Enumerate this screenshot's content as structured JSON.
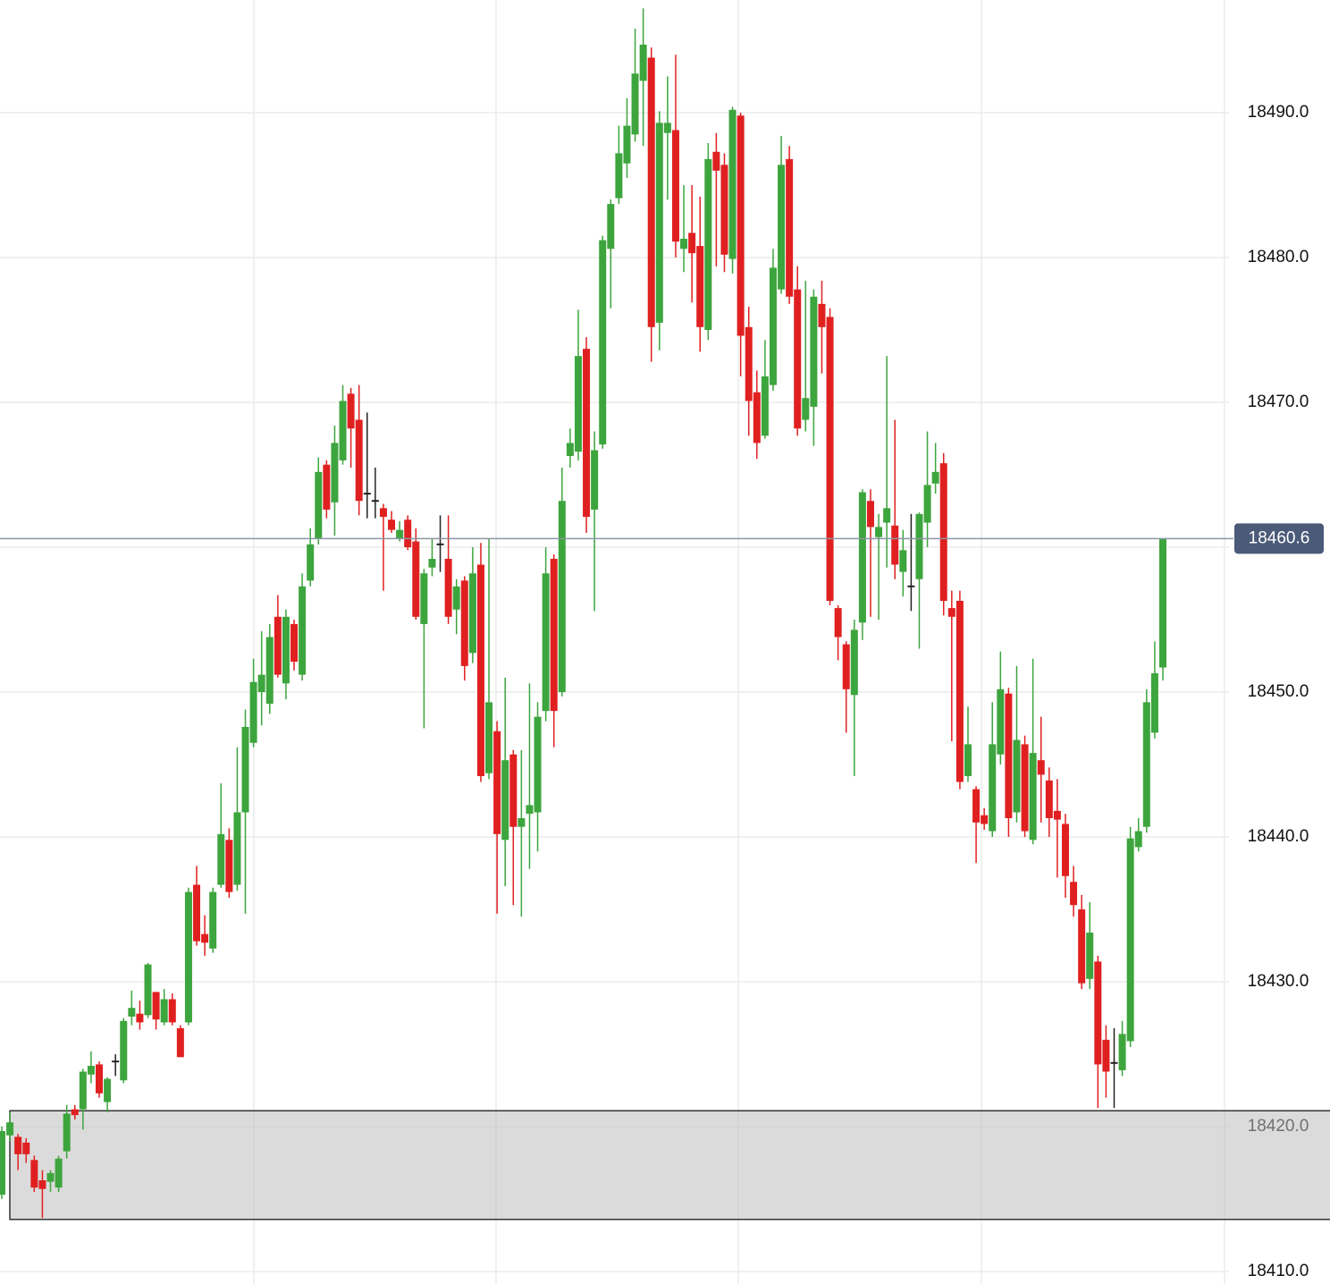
{
  "chart_data": {
    "type": "candlestick",
    "ylim": [
      18409.14,
      18497.78
    ],
    "yticks": [
      {
        "value": 18410,
        "label": "18410.0"
      },
      {
        "value": 18420,
        "label": "18420.0"
      },
      {
        "value": 18430,
        "label": "18430.0"
      },
      {
        "value": 18440,
        "label": "18440.0"
      },
      {
        "value": 18450,
        "label": "18450.0"
      },
      {
        "value": 18460,
        "label": "18460.0"
      },
      {
        "value": 18470,
        "label": "18470.0"
      },
      {
        "value": 18480,
        "label": "18480.0"
      },
      {
        "value": 18490,
        "label": "18490.0"
      }
    ],
    "hidden_tick_labels": [
      18460
    ],
    "grid": true,
    "up_color": "#3da53d",
    "down_color": "#e02020",
    "doji_color": "#222222",
    "last_price": {
      "value": 18460.6,
      "label": "18460.6"
    },
    "last_price_color": "#4a5a78",
    "shaded_range": [
      18413.6,
      18421.1
    ],
    "open": [
      18415.3,
      18419.4,
      18419.3,
      18418.9,
      18417.7,
      18416.3,
      18416.2,
      18415.8,
      18418.3,
      18421.2,
      18421.2,
      18423.6,
      18424.3,
      18421.7,
      18424.5,
      18423.2,
      18427.6,
      18427.8,
      18427.7,
      18429.3,
      18427.2,
      18428.8,
      18426.8,
      18427.2,
      18436.7,
      18433.3,
      18432.3,
      18436.7,
      18439.8,
      18436.7,
      18441.7,
      18446.5,
      18450,
      18449.2,
      18455.2,
      18450.6,
      18454.7,
      18451.2,
      18457.7,
      18460.6,
      18465.7,
      18463.1,
      18466,
      18470.6,
      18468.8,
      18463.7,
      18463.2,
      18462.7,
      18461.9,
      18460.6,
      18461.9,
      18460.4,
      18454.7,
      18458.6,
      18460.2,
      18459.2,
      18455.7,
      18457.7,
      18452.7,
      18458.8,
      18444.4,
      18447.3,
      18439.8,
      18445.7,
      18440.7,
      18441.6,
      18441.7,
      18448.7,
      18459.2,
      18450,
      18466.3,
      18466.6,
      18473.7,
      18462.6,
      18467.1,
      18480.6,
      18484.1,
      18486.5,
      18488.5,
      18492.2,
      18493.8,
      18475.5,
      18488.6,
      18488.8,
      18480.6,
      18481.7,
      18480.8,
      18475,
      18487.3,
      18486.4,
      18479.9,
      18489.8,
      18475.2,
      18470.7,
      18467.7,
      18471.2,
      18477.8,
      18486.8,
      18477.8,
      18468.8,
      18469.7,
      18476.8,
      18475.9,
      18455.8,
      18453.3,
      18449.8,
      18454.8,
      18463.2,
      18460.7,
      18461.7,
      18461.5,
      18458.3,
      18457.3,
      18457.8,
      18461.7,
      18464.4,
      18465.8,
      18455.8,
      18456.3,
      18444.2,
      18443.3,
      18441.5,
      18440.4,
      18445.7,
      18449.9,
      18441.7,
      18446.4,
      18439.8,
      18445.3,
      18443.9,
      18441.8,
      18440.9,
      18436.9,
      18435,
      18430.2,
      18431.4,
      18426,
      18424.4,
      18423.9,
      18425.9,
      18439.3,
      18440.7,
      18447.2,
      18451.7
    ],
    "high": [
      18420,
      18421,
      18419.5,
      18419.2,
      18418,
      18417,
      18417,
      18418,
      18421.5,
      18421.5,
      18424,
      18425.2,
      18424.5,
      18423.4,
      18425,
      18427.5,
      18429.4,
      18428.7,
      18431.3,
      18429.3,
      18429.5,
      18429.2,
      18427,
      18436.5,
      18438,
      18434.6,
      18436.5,
      18443.7,
      18440.6,
      18446.2,
      18448.8,
      18452.3,
      18454.2,
      18454.7,
      18456.7,
      18455.7,
      18455,
      18458.2,
      18461.3,
      18466.2,
      18466,
      18468.4,
      18471.2,
      18471,
      18471.2,
      18469.3,
      18465.5,
      18463,
      18462.5,
      18461.8,
      18462.2,
      18461.3,
      18458.5,
      18460.6,
      18462.2,
      18462.2,
      18457.8,
      18458,
      18460,
      18460.3,
      18460.6,
      18448,
      18451,
      18446,
      18446,
      18450.6,
      18449.3,
      18460,
      18459.5,
      18465.5,
      18468.2,
      18476.4,
      18474.5,
      18468,
      18481.5,
      18484,
      18489.1,
      18491,
      18495.8,
      18497.2,
      18494.5,
      18490.1,
      18492.5,
      18494,
      18485,
      18485,
      18484.2,
      18487.9,
      18488.6,
      18487.2,
      18490.4,
      18490,
      18476.6,
      18472.2,
      18474.3,
      18480.6,
      18488.4,
      18487.7,
      18479.4,
      18478.4,
      18477.8,
      18478.4,
      18476.5,
      18456,
      18453.5,
      18455,
      18464,
      18464,
      18462.3,
      18473.2,
      18468.8,
      18461.2,
      18462.3,
      18462.4,
      18468,
      18467.2,
      18466.5,
      18457,
      18457,
      18449,
      18443.5,
      18442,
      18449.3,
      18452.8,
      18450.3,
      18451.8,
      18447,
      18452.3,
      18448.3,
      18444.8,
      18444,
      18441.6,
      18438,
      18436,
      18435.5,
      18431.8,
      18427,
      18426.8,
      18427.3,
      18440.7,
      18441.3,
      18450.2,
      18453.5,
      18460.6
    ],
    "low": [
      18415,
      18419,
      18417,
      18417.5,
      18415.5,
      18413.7,
      18415.5,
      18415.5,
      18417.8,
      18420.5,
      18419.8,
      18423,
      18422,
      18421,
      18423.5,
      18423,
      18427,
      18426.7,
      18427.5,
      18426.7,
      18427,
      18427,
      18424.8,
      18427,
      18432.5,
      18431.8,
      18432,
      18436.5,
      18435.8,
      18436.3,
      18434.7,
      18446.2,
      18447.7,
      18448.5,
      18451,
      18449.5,
      18451.5,
      18450.8,
      18457.3,
      18460.2,
      18462,
      18460.8,
      18465.7,
      18465.5,
      18462.2,
      18462,
      18462,
      18457,
      18461,
      18460.4,
      18459.8,
      18455,
      18447.5,
      18458,
      18458.3,
      18454.7,
      18454,
      18450.8,
      18452,
      18443.8,
      18444,
      18434.7,
      18436.6,
      18435.3,
      18434.5,
      18437.8,
      18439,
      18448,
      18446.2,
      18449.7,
      18465.5,
      18466,
      18461,
      18455.6,
      18466.8,
      18476.5,
      18483.7,
      18485.5,
      18488,
      18487.7,
      18472.8,
      18473.6,
      18484,
      18480,
      18479,
      18476.9,
      18473.5,
      18474.3,
      18479.4,
      18479,
      18478.9,
      18471.8,
      18467.7,
      18466.1,
      18467.5,
      18470.8,
      18477.5,
      18476.8,
      18467.7,
      18468,
      18467,
      18472,
      18456,
      18452.2,
      18447.2,
      18444.2,
      18453.6,
      18455.2,
      18455,
      18458.6,
      18457.8,
      18456.6,
      18455.6,
      18453,
      18460,
      18463.7,
      18455.3,
      18446.6,
      18443.3,
      18443.8,
      18438.2,
      18440.5,
      18440,
      18445,
      18440,
      18441,
      18440,
      18439.5,
      18441,
      18440,
      18437.2,
      18435.8,
      18434.5,
      18429.5,
      18429.5,
      18421.3,
      18422,
      18421.3,
      18423.5,
      18425.5,
      18439,
      18440.3,
      18446.8,
      18450.8
    ],
    "close": [
      18419.7,
      18420.3,
      18418.1,
      18418.1,
      18415.8,
      18415.7,
      18416.8,
      18417.8,
      18420.9,
      18420.8,
      18423.8,
      18424.2,
      18422.3,
      18423.3,
      18424.5,
      18427.3,
      18428.2,
      18427.2,
      18431.2,
      18427.4,
      18428.8,
      18427.2,
      18424.8,
      18436.2,
      18432.8,
      18432.7,
      18436.2,
      18440.2,
      18436.2,
      18441.7,
      18447.6,
      18450.7,
      18451.2,
      18453.8,
      18451.2,
      18455.2,
      18452.1,
      18457.3,
      18460.2,
      18465.2,
      18462.6,
      18467.2,
      18470.1,
      18468.2,
      18463.2,
      18463.7,
      18463.2,
      18462.1,
      18461.2,
      18461.2,
      18460,
      18455.2,
      18458.2,
      18459.2,
      18460.2,
      18455.2,
      18457.3,
      18451.8,
      18458.2,
      18444.2,
      18449.3,
      18440.2,
      18445.3,
      18440.7,
      18441.3,
      18442.2,
      18448.3,
      18458.2,
      18448.7,
      18463.2,
      18467.2,
      18473.2,
      18462.1,
      18466.7,
      18481.2,
      18483.7,
      18487.2,
      18489.1,
      18492.7,
      18494.7,
      18475.2,
      18489.3,
      18489.3,
      18481.1,
      18481.3,
      18480.3,
      18475.2,
      18486.8,
      18486,
      18480.2,
      18490.2,
      18474.6,
      18470.1,
      18467.2,
      18471.8,
      18479.3,
      18486.4,
      18477.3,
      18468.2,
      18470.3,
      18477.3,
      18475.2,
      18456.3,
      18453.8,
      18450.2,
      18454.3,
      18463.8,
      18461.4,
      18461.4,
      18462.7,
      18458.8,
      18459.8,
      18457.3,
      18462.3,
      18464.3,
      18465.2,
      18456.3,
      18455.2,
      18443.8,
      18446.4,
      18441,
      18440.9,
      18446.4,
      18450.2,
      18441.3,
      18446.7,
      18440.4,
      18445.8,
      18444.3,
      18441.3,
      18441.2,
      18437.3,
      18435.3,
      18429.9,
      18433.4,
      18424.3,
      18423.8,
      18424.4,
      18426.4,
      18439.9,
      18440.4,
      18449.3,
      18451.3,
      18460.6
    ]
  }
}
